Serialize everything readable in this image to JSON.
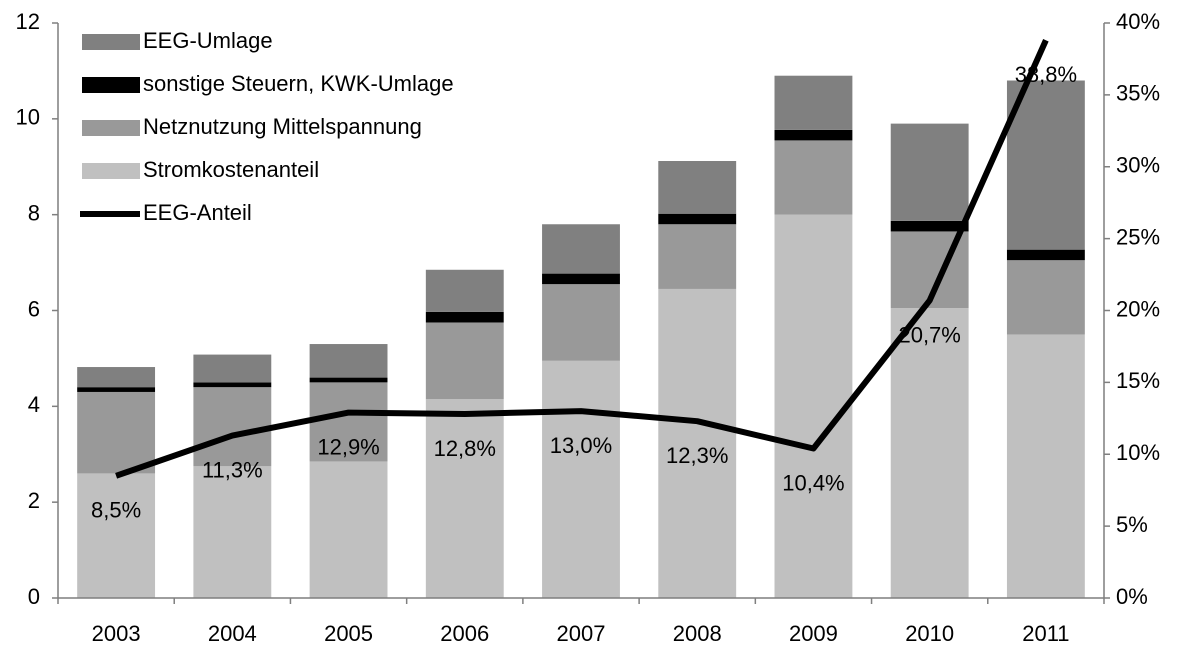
{
  "chart_data": {
    "type": "bar",
    "stacked": true,
    "categories": [
      "2003",
      "2004",
      "2005",
      "2006",
      "2007",
      "2008",
      "2009",
      "2010",
      "2011"
    ],
    "series": [
      {
        "name": "Stromkostenanteil",
        "color": "#c0c0c0",
        "values": [
          2.6,
          2.75,
          2.85,
          4.15,
          4.95,
          6.45,
          8.0,
          6.05,
          5.5
        ]
      },
      {
        "name": "Netznutzung Mittelspannung",
        "color": "#999999",
        "values": [
          1.7,
          1.65,
          1.65,
          1.6,
          1.6,
          1.35,
          1.55,
          1.6,
          1.55
        ]
      },
      {
        "name": "sonstige Steuern, KWK-Umlage",
        "color": "#000000",
        "values": [
          0.1,
          0.1,
          0.1,
          0.22,
          0.22,
          0.22,
          0.22,
          0.22,
          0.22
        ]
      },
      {
        "name": "EEG-Umlage",
        "color": "#808080",
        "values": [
          0.42,
          0.58,
          0.7,
          0.88,
          1.03,
          1.1,
          1.13,
          2.03,
          3.53
        ]
      },
      {
        "name": "EEG-Anteil",
        "type": "line",
        "axis": "y2",
        "color": "#000000",
        "values": [
          8.5,
          11.3,
          12.9,
          12.8,
          13.0,
          12.3,
          10.4,
          20.7,
          38.8
        ],
        "value_labels": [
          "8,5%",
          "11,3%",
          "12,9%",
          "12,8%",
          "13,0%",
          "12,3%",
          "10,4%",
          "20,7%",
          "38,8%"
        ]
      }
    ],
    "ylim": [
      0,
      12
    ],
    "yticks": [
      0,
      2,
      4,
      6,
      8,
      10,
      12
    ],
    "y2lim": [
      0,
      40
    ],
    "y2ticks": [
      {
        "value": 0,
        "label": "0%"
      },
      {
        "value": 5,
        "label": "5%"
      },
      {
        "value": 10,
        "label": "10%"
      },
      {
        "value": 15,
        "label": "15%"
      },
      {
        "value": 20,
        "label": "20%"
      },
      {
        "value": 25,
        "label": "25%"
      },
      {
        "value": 30,
        "label": "30%"
      },
      {
        "value": 35,
        "label": "35%"
      },
      {
        "value": 40,
        "label": "40%"
      }
    ]
  }
}
